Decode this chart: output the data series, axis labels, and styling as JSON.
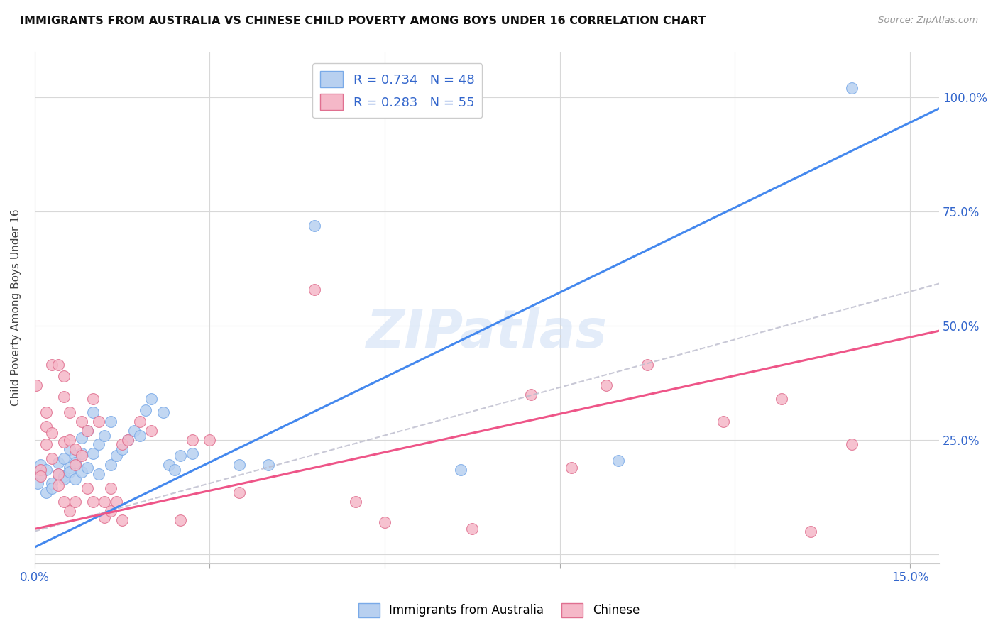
{
  "title": "IMMIGRANTS FROM AUSTRALIA VS CHINESE CHILD POVERTY AMONG BOYS UNDER 16 CORRELATION CHART",
  "source": "Source: ZipAtlas.com",
  "ylabel": "Child Poverty Among Boys Under 16",
  "xlim": [
    0.0,
    0.155
  ],
  "ylim": [
    -0.02,
    1.1
  ],
  "xticks": [
    0.0,
    0.03,
    0.06,
    0.09,
    0.12,
    0.15
  ],
  "xtick_labels": [
    "0.0%",
    "",
    "",
    "",
    "",
    "15.0%"
  ],
  "yticks": [
    0.0,
    0.25,
    0.5,
    0.75,
    1.0
  ],
  "ytick_labels": [
    "",
    "25.0%",
    "50.0%",
    "75.0%",
    "100.0%"
  ],
  "background_color": "#ffffff",
  "grid_color": "#d8d8d8",
  "watermark": "ZIPatlas",
  "legend_entries": [
    {
      "label": "R = 0.734   N = 48",
      "facecolor": "#b8d0f0",
      "edgecolor": "#7aaae8"
    },
    {
      "label": "R = 0.283   N = 55",
      "facecolor": "#f5b8c8",
      "edgecolor": "#e07090"
    }
  ],
  "blue_scatter_color": "#b8d0f0",
  "blue_edge_color": "#7aaae8",
  "pink_scatter_color": "#f5b8c8",
  "pink_edge_color": "#e07090",
  "blue_line_color": "#4488ee",
  "pink_line_color": "#ee5588",
  "gray_dash_color": "#bbbbcc",
  "blue_slope": 6.2,
  "blue_intercept": 0.015,
  "pink_slope": 2.8,
  "pink_intercept": 0.055,
  "gray_dash_slope": 3.5,
  "gray_dash_intercept": 0.05,
  "blue_scatter": [
    [
      0.0005,
      0.155
    ],
    [
      0.001,
      0.175
    ],
    [
      0.001,
      0.195
    ],
    [
      0.002,
      0.135
    ],
    [
      0.002,
      0.185
    ],
    [
      0.003,
      0.155
    ],
    [
      0.003,
      0.145
    ],
    [
      0.004,
      0.175
    ],
    [
      0.004,
      0.2
    ],
    [
      0.005,
      0.17
    ],
    [
      0.005,
      0.21
    ],
    [
      0.005,
      0.165
    ],
    [
      0.006,
      0.19
    ],
    [
      0.006,
      0.23
    ],
    [
      0.006,
      0.18
    ],
    [
      0.007,
      0.215
    ],
    [
      0.007,
      0.2
    ],
    [
      0.007,
      0.165
    ],
    [
      0.008,
      0.22
    ],
    [
      0.008,
      0.255
    ],
    [
      0.008,
      0.18
    ],
    [
      0.009,
      0.27
    ],
    [
      0.009,
      0.19
    ],
    [
      0.01,
      0.22
    ],
    [
      0.01,
      0.31
    ],
    [
      0.011,
      0.24
    ],
    [
      0.011,
      0.175
    ],
    [
      0.012,
      0.26
    ],
    [
      0.013,
      0.29
    ],
    [
      0.013,
      0.195
    ],
    [
      0.014,
      0.215
    ],
    [
      0.015,
      0.23
    ],
    [
      0.016,
      0.25
    ],
    [
      0.017,
      0.27
    ],
    [
      0.018,
      0.26
    ],
    [
      0.019,
      0.315
    ],
    [
      0.02,
      0.34
    ],
    [
      0.022,
      0.31
    ],
    [
      0.023,
      0.195
    ],
    [
      0.024,
      0.185
    ],
    [
      0.025,
      0.215
    ],
    [
      0.027,
      0.22
    ],
    [
      0.035,
      0.195
    ],
    [
      0.04,
      0.195
    ],
    [
      0.048,
      0.72
    ],
    [
      0.073,
      0.185
    ],
    [
      0.1,
      0.205
    ],
    [
      0.14,
      1.02
    ]
  ],
  "pink_scatter": [
    [
      0.0003,
      0.37
    ],
    [
      0.001,
      0.185
    ],
    [
      0.001,
      0.17
    ],
    [
      0.002,
      0.31
    ],
    [
      0.002,
      0.24
    ],
    [
      0.002,
      0.28
    ],
    [
      0.003,
      0.265
    ],
    [
      0.003,
      0.21
    ],
    [
      0.003,
      0.415
    ],
    [
      0.004,
      0.415
    ],
    [
      0.004,
      0.175
    ],
    [
      0.004,
      0.15
    ],
    [
      0.005,
      0.39
    ],
    [
      0.005,
      0.345
    ],
    [
      0.005,
      0.245
    ],
    [
      0.005,
      0.115
    ],
    [
      0.006,
      0.31
    ],
    [
      0.006,
      0.25
    ],
    [
      0.006,
      0.095
    ],
    [
      0.007,
      0.23
    ],
    [
      0.007,
      0.195
    ],
    [
      0.007,
      0.115
    ],
    [
      0.008,
      0.215
    ],
    [
      0.008,
      0.29
    ],
    [
      0.009,
      0.27
    ],
    [
      0.009,
      0.145
    ],
    [
      0.01,
      0.34
    ],
    [
      0.01,
      0.115
    ],
    [
      0.011,
      0.29
    ],
    [
      0.012,
      0.115
    ],
    [
      0.012,
      0.08
    ],
    [
      0.013,
      0.095
    ],
    [
      0.013,
      0.145
    ],
    [
      0.014,
      0.115
    ],
    [
      0.015,
      0.24
    ],
    [
      0.015,
      0.075
    ],
    [
      0.016,
      0.25
    ],
    [
      0.018,
      0.29
    ],
    [
      0.02,
      0.27
    ],
    [
      0.025,
      0.075
    ],
    [
      0.027,
      0.25
    ],
    [
      0.03,
      0.25
    ],
    [
      0.035,
      0.135
    ],
    [
      0.048,
      0.58
    ],
    [
      0.055,
      0.115
    ],
    [
      0.06,
      0.07
    ],
    [
      0.075,
      0.055
    ],
    [
      0.085,
      0.35
    ],
    [
      0.092,
      0.19
    ],
    [
      0.098,
      0.37
    ],
    [
      0.105,
      0.415
    ],
    [
      0.118,
      0.29
    ],
    [
      0.128,
      0.34
    ],
    [
      0.133,
      0.05
    ],
    [
      0.14,
      0.24
    ]
  ],
  "bottom_legend": [
    {
      "label": "Immigrants from Australia",
      "facecolor": "#b8d0f0",
      "edgecolor": "#7aaae8"
    },
    {
      "label": "Chinese",
      "facecolor": "#f5b8c8",
      "edgecolor": "#e07090"
    }
  ]
}
